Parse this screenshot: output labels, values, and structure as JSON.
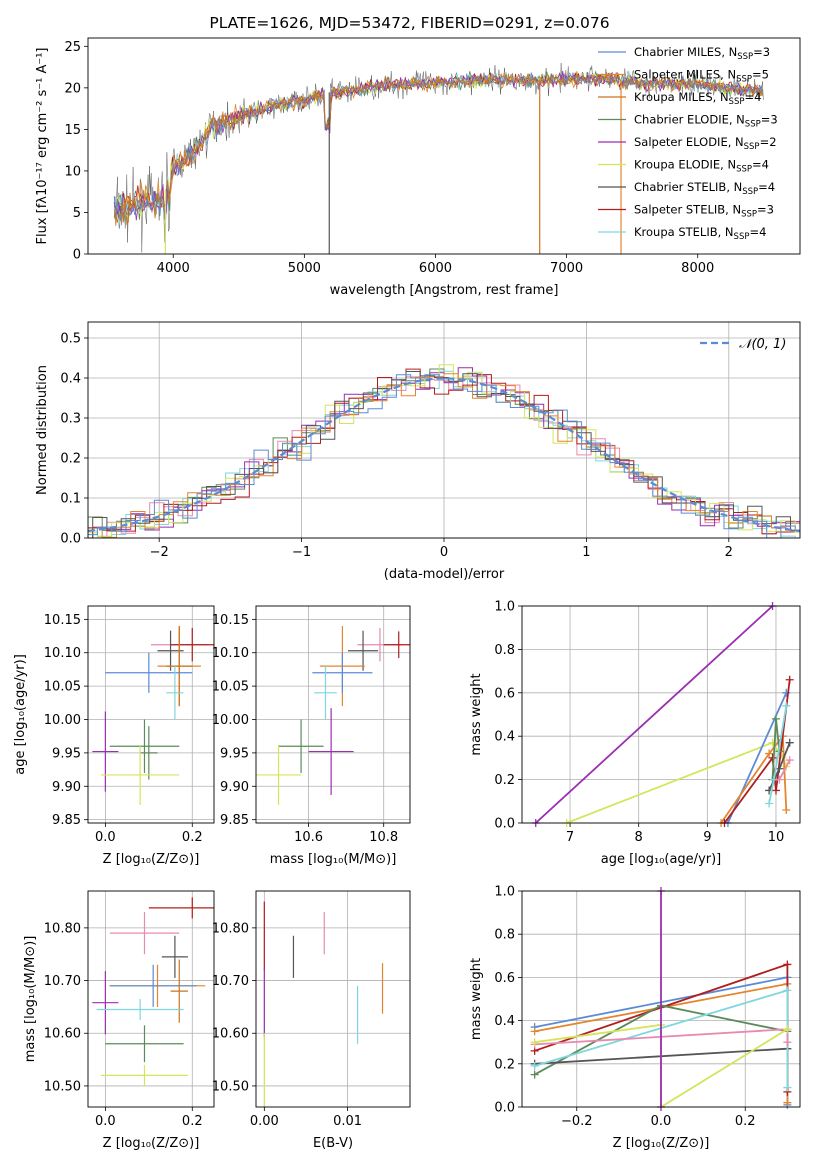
{
  "figure": {
    "title": "PLATE=1626, MJD=53472, FIBERID=0291, z=0.076"
  },
  "series_colors": {
    "chabrier_miles": "#5b8bd6",
    "salpeter_miles": "#e2862f",
    "kroupa_miles": "#c9751b",
    "chabrier_elodie": "#5c8a5a",
    "salpeter_elodie": "#9a2fb0",
    "kroupa_elodie": "#d5e55a",
    "chabrier_stelib": "#555555",
    "salpeter_stelib": "#b01e1e",
    "kroupa_stelib": "#7fd6dc",
    "pink": "#e88ab0",
    "normal_curve": "#5b8bd6"
  },
  "chart_data": [
    {
      "id": "spectrum",
      "type": "line",
      "title": "PLATE=1626, MJD=53472, FIBERID=0291, z=0.076",
      "xlabel": "wavelength [Angstrom, rest frame]",
      "ylabel": "Flux [fλ10⁻¹⁷ erg cm⁻² s⁻¹ A⁻¹]",
      "xlim": [
        3350,
        8780
      ],
      "ylim": [
        0,
        26
      ],
      "xticks": [
        4000,
        5000,
        6000,
        7000,
        8000
      ],
      "yticks": [
        0,
        5,
        10,
        15,
        20,
        25
      ],
      "grid": false,
      "legend_position": "top-right",
      "continuum": {
        "x": [
          3550,
          3700,
          3800,
          3900,
          4000,
          4100,
          4200,
          4300,
          4400,
          4600,
          4800,
          5000,
          5200,
          5400,
          5600,
          5800,
          6000,
          6200,
          6400,
          6600,
          6800,
          7000,
          7200,
          7400,
          7600,
          7800,
          8000,
          8200,
          8400,
          8500
        ],
        "y": [
          5.2,
          6.0,
          6.5,
          6.0,
          10.5,
          11.5,
          13.0,
          15.5,
          16.0,
          17.0,
          18.0,
          18.5,
          19.5,
          19.7,
          20.3,
          20.5,
          20.6,
          20.8,
          21.0,
          21.0,
          20.8,
          21.0,
          21.2,
          21.0,
          20.5,
          20.5,
          20.5,
          20.0,
          19.8,
          19.5
        ]
      },
      "legend": [
        {
          "label": "Chabrier MILES, N",
          "sub": "SSP",
          "suffix": "=3",
          "color": "#5b8bd6"
        },
        {
          "label": "Salpeter MILES, N",
          "sub": "SSP",
          "suffix": "=5",
          "color": "#e2862f"
        },
        {
          "label": "Kroupa MILES, N",
          "sub": "SSP",
          "suffix": "=4",
          "color": "#c9751b"
        },
        {
          "label": "Chabrier ELODIE, N",
          "sub": "SSP",
          "suffix": "=3",
          "color": "#5c8a5a"
        },
        {
          "label": "Salpeter ELODIE, N",
          "sub": "SSP",
          "suffix": "=2",
          "color": "#9a2fb0"
        },
        {
          "label": "Kroupa ELODIE, N",
          "sub": "SSP",
          "suffix": "=4",
          "color": "#d5e55a"
        },
        {
          "label": "Chabrier STELIB, N",
          "sub": "SSP",
          "suffix": "=4",
          "color": "#555555"
        },
        {
          "label": "Salpeter STELIB, N",
          "sub": "SSP",
          "suffix": "=3",
          "color": "#b01e1e"
        },
        {
          "label": "Kroupa STELIB, N",
          "sub": "SSP",
          "suffix": "=4",
          "color": "#7fd6dc"
        }
      ]
    },
    {
      "id": "residuals",
      "type": "line",
      "xlabel": "(data-model)/error",
      "ylabel": "Normed distribution",
      "xlim": [
        -2.5,
        2.5
      ],
      "ylim": [
        0,
        0.54
      ],
      "xticks": [
        -2,
        -1,
        0,
        1,
        2
      ],
      "yticks": [
        0.0,
        0.1,
        0.2,
        0.3,
        0.4,
        0.5
      ],
      "grid": true,
      "legend_position": "top-right",
      "legend_label": "𝒩(0, 1)"
    },
    {
      "id": "age_vs_Z",
      "type": "scatter",
      "xlabel": "Z [log₁₀(Z/Z⊙)]",
      "ylabel": "age  [log₁₀(age/yr)]",
      "xlim": [
        -0.04,
        0.25
      ],
      "ylim": [
        9.845,
        10.17
      ],
      "xticks": [
        0.0,
        0.2
      ],
      "yticks": [
        9.85,
        9.9,
        9.95,
        10.0,
        10.05,
        10.1,
        10.15
      ],
      "grid": true,
      "points": [
        {
          "x": 0.17,
          "y": 10.112,
          "xerr": 0.065,
          "yerr": 0.025,
          "color": "#e88ab0"
        },
        {
          "x": 0.2,
          "y": 10.112,
          "xerr": 0.05,
          "yerr": 0.025,
          "color": "#b01e1e"
        },
        {
          "x": 0.15,
          "y": 10.103,
          "xerr": 0.03,
          "yerr": 0.03,
          "color": "#555555"
        },
        {
          "x": 0.17,
          "y": 10.08,
          "xerr": 0.05,
          "yerr": 0.06,
          "color": "#e2862f"
        },
        {
          "x": 0.17,
          "y": 10.08,
          "xerr": 0.03,
          "yerr": 0.06,
          "color": "#c9751b"
        },
        {
          "x": 0.1,
          "y": 10.07,
          "xerr": 0.1,
          "yerr": 0.03,
          "color": "#5b8bd6"
        },
        {
          "x": 0.16,
          "y": 10.04,
          "xerr": 0.02,
          "yerr": 0.04,
          "color": "#7fd6dc"
        },
        {
          "x": 0.09,
          "y": 9.96,
          "xerr": 0.08,
          "yerr": 0.04,
          "color": "#5c8a5a"
        },
        {
          "x": 0.1,
          "y": 9.95,
          "xerr": 0.02,
          "yerr": 0.04,
          "color": "#5c8a5a"
        },
        {
          "x": 0.0,
          "y": 9.952,
          "xerr": 0.03,
          "yerr": 0.06,
          "color": "#9a2fb0"
        },
        {
          "x": 0.08,
          "y": 9.917,
          "xerr": 0.09,
          "yerr": 0.045,
          "color": "#d5e55a"
        }
      ]
    },
    {
      "id": "age_vs_mass",
      "type": "scatter",
      "xlabel": "mass [log₁₀(M/M⊙)]",
      "xlim": [
        10.46,
        10.87
      ],
      "ylim": [
        9.845,
        10.17
      ],
      "xticks": [
        10.6,
        10.8
      ],
      "yticks": [
        9.85,
        9.9,
        9.95,
        10.0,
        10.05,
        10.1,
        10.15
      ],
      "grid": true,
      "points": [
        {
          "x": 10.79,
          "y": 10.112,
          "xerr": 0.06,
          "yerr": 0.025,
          "color": "#e88ab0"
        },
        {
          "x": 10.84,
          "y": 10.112,
          "xerr": 0.04,
          "yerr": 0.02,
          "color": "#b01e1e"
        },
        {
          "x": 10.745,
          "y": 10.103,
          "xerr": 0.04,
          "yerr": 0.03,
          "color": "#555555"
        },
        {
          "x": 10.69,
          "y": 10.08,
          "xerr": 0.06,
          "yerr": 0.06,
          "color": "#e2862f"
        },
        {
          "x": 10.69,
          "y": 10.07,
          "xerr": 0.08,
          "yerr": 0.03,
          "color": "#5b8bd6"
        },
        {
          "x": 10.645,
          "y": 10.04,
          "xerr": 0.03,
          "yerr": 0.04,
          "color": "#7fd6dc"
        },
        {
          "x": 10.58,
          "y": 9.96,
          "xerr": 0.06,
          "yerr": 0.04,
          "color": "#5c8a5a"
        },
        {
          "x": 10.66,
          "y": 9.952,
          "xerr": 0.06,
          "yerr": 0.065,
          "color": "#9a2fb0"
        },
        {
          "x": 10.52,
          "y": 9.917,
          "xerr": 0.06,
          "yerr": 0.045,
          "color": "#d5e55a"
        }
      ]
    },
    {
      "id": "weight_vs_age",
      "type": "line",
      "xlabel": "age  [log₁₀(age/yr)]",
      "ylabel": "mass weight",
      "xlim": [
        6.3,
        10.35
      ],
      "ylim": [
        0.0,
        1.0
      ],
      "xticks": [
        7,
        8,
        9,
        10
      ],
      "yticks": [
        0.0,
        0.2,
        0.4,
        0.6,
        0.8,
        1.0
      ],
      "grid": true,
      "series": [
        {
          "color": "#9a2fb0",
          "x": [
            6.5,
            9.95
          ],
          "y": [
            0.0,
            1.0
          ]
        },
        {
          "color": "#d5e55a",
          "x": [
            6.95,
            9.95,
            10.1,
            10.15
          ],
          "y": [
            0.0,
            0.37,
            0.3,
            0.26
          ]
        },
        {
          "color": "#5b8bd6",
          "x": [
            9.3,
            10.15
          ],
          "y": [
            0.0,
            0.6
          ]
        },
        {
          "color": "#e2862f",
          "x": [
            9.2,
            9.9,
            10.1,
            10.15
          ],
          "y": [
            0.0,
            0.32,
            0.4,
            0.06
          ]
        },
        {
          "color": "#b01e1e",
          "x": [
            9.25,
            9.95,
            10.0,
            10.2
          ],
          "y": [
            0.0,
            0.3,
            0.15,
            0.66
          ]
        },
        {
          "color": "#5c8a5a",
          "x": [
            9.95,
            10.0,
            10.05
          ],
          "y": [
            0.2,
            0.48,
            0.33
          ]
        },
        {
          "color": "#555555",
          "x": [
            9.9,
            10.05,
            10.2
          ],
          "y": [
            0.15,
            0.25,
            0.37
          ]
        },
        {
          "color": "#7fd6dc",
          "x": [
            9.9,
            9.97,
            10.15
          ],
          "y": [
            0.09,
            0.2,
            0.54
          ]
        },
        {
          "color": "#e88ab0",
          "x": [
            10.05,
            10.2
          ],
          "y": [
            0.2,
            0.29
          ]
        }
      ]
    },
    {
      "id": "mass_vs_Z",
      "type": "scatter",
      "xlabel": "Z [log₁₀(Z/Z⊙)]",
      "ylabel": "mass [log₁₀(M/M⊙)]",
      "xlim": [
        -0.04,
        0.25
      ],
      "ylim": [
        10.46,
        10.87
      ],
      "xticks": [
        0.0,
        0.2
      ],
      "yticks": [
        10.5,
        10.6,
        10.7,
        10.8
      ],
      "grid": true,
      "points": [
        {
          "x": 0.2,
          "y": 10.838,
          "xerr": 0.1,
          "yerr": 0.02,
          "color": "#b01e1e"
        },
        {
          "x": 0.09,
          "y": 10.79,
          "xerr": 0.08,
          "yerr": 0.04,
          "color": "#e88ab0"
        },
        {
          "x": 0.16,
          "y": 10.745,
          "xerr": 0.03,
          "yerr": 0.04,
          "color": "#555555"
        },
        {
          "x": 0.12,
          "y": 10.69,
          "xerr": 0.11,
          "yerr": 0.04,
          "color": "#e2862f"
        },
        {
          "x": 0.11,
          "y": 10.69,
          "xerr": 0.1,
          "yerr": 0.04,
          "color": "#5b8bd6"
        },
        {
          "x": 0.17,
          "y": 10.68,
          "xerr": 0.02,
          "yerr": 0.06,
          "color": "#c9751b"
        },
        {
          "x": 0.0,
          "y": 10.658,
          "xerr": 0.03,
          "yerr": 0.06,
          "color": "#9a2fb0"
        },
        {
          "x": 0.08,
          "y": 10.645,
          "xerr": 0.1,
          "yerr": 0.02,
          "color": "#7fd6dc"
        },
        {
          "x": 0.09,
          "y": 10.58,
          "xerr": 0.09,
          "yerr": 0.035,
          "color": "#5c8a5a"
        },
        {
          "x": 0.09,
          "y": 10.52,
          "xerr": 0.1,
          "yerr": 0.02,
          "color": "#d5e55a"
        }
      ]
    },
    {
      "id": "mass_vs_ebv",
      "type": "scatter",
      "xlabel": "E(B-V)",
      "xlim": [
        -0.001,
        0.0175
      ],
      "ylim": [
        10.46,
        10.87
      ],
      "xticks": [
        0.0,
        0.01
      ],
      "yticks": [
        10.5,
        10.6,
        10.7,
        10.8
      ],
      "grid": true,
      "points": [
        {
          "x": 0.0,
          "y": 10.785,
          "xerr": 0,
          "yerr": 0.065,
          "color": "#b01e1e"
        },
        {
          "x": 0.0035,
          "y": 10.745,
          "xerr": 0,
          "yerr": 0.04,
          "color": "#555555"
        },
        {
          "x": 0.0072,
          "y": 10.79,
          "xerr": 0,
          "yerr": 0.04,
          "color": "#e88ab0"
        },
        {
          "x": 0.0,
          "y": 10.658,
          "xerr": 0,
          "yerr": 0.065,
          "color": "#9a2fb0"
        },
        {
          "x": 0.0142,
          "y": 10.685,
          "xerr": 0,
          "yerr": 0.048,
          "color": "#e2862f"
        },
        {
          "x": 0.0112,
          "y": 10.635,
          "xerr": 0,
          "yerr": 0.055,
          "color": "#7fd6dc"
        },
        {
          "x": 0.0178,
          "y": 10.685,
          "xerr": 0,
          "yerr": 0.058,
          "color": "#5b8bd6"
        },
        {
          "x": 0.0,
          "y": 10.53,
          "xerr": 0,
          "yerr": 0.07,
          "color": "#d5e55a"
        }
      ]
    },
    {
      "id": "weight_vs_Z",
      "type": "line",
      "xlabel": "Z [log₁₀(Z/Z⊙)]",
      "ylabel": "mass weight",
      "xlim": [
        -0.33,
        0.33
      ],
      "ylim": [
        0.0,
        1.0
      ],
      "xticks": [
        -0.2,
        0.0,
        0.2
      ],
      "yticks": [
        0.0,
        0.2,
        0.4,
        0.6,
        0.8,
        1.0
      ],
      "grid": true,
      "series": [
        {
          "color": "#5b8bd6",
          "x": [
            -0.3,
            0.3,
            0.3
          ],
          "y": [
            0.37,
            0.6,
            0.01
          ]
        },
        {
          "color": "#e2862f",
          "x": [
            -0.3,
            0.3,
            0.3
          ],
          "y": [
            0.35,
            0.57,
            0.02
          ]
        },
        {
          "color": "#b01e1e",
          "x": [
            -0.3,
            0.3,
            0.3
          ],
          "y": [
            0.26,
            0.66,
            0.07
          ]
        },
        {
          "color": "#5c8a5a",
          "x": [
            -0.3,
            0.0,
            0.3
          ],
          "y": [
            0.15,
            0.47,
            0.35
          ]
        },
        {
          "color": "#555555",
          "x": [
            -0.3,
            0.3
          ],
          "y": [
            0.2,
            0.27
          ]
        },
        {
          "color": "#7fd6dc",
          "x": [
            -0.3,
            0.3,
            0.3
          ],
          "y": [
            0.19,
            0.54,
            0.09
          ]
        },
        {
          "color": "#e88ab0",
          "x": [
            -0.3,
            0.3,
            0.3
          ],
          "y": [
            0.29,
            0.36,
            0.3
          ]
        },
        {
          "color": "#d5e55a",
          "x": [
            -0.3,
            0.0,
            0.0,
            0.3
          ],
          "y": [
            0.3,
            0.38,
            0.0,
            0.36
          ]
        },
        {
          "color": "#9a2fb0",
          "x": [
            0.0,
            0.0
          ],
          "y": [
            0.0,
            1.0
          ]
        }
      ]
    }
  ]
}
